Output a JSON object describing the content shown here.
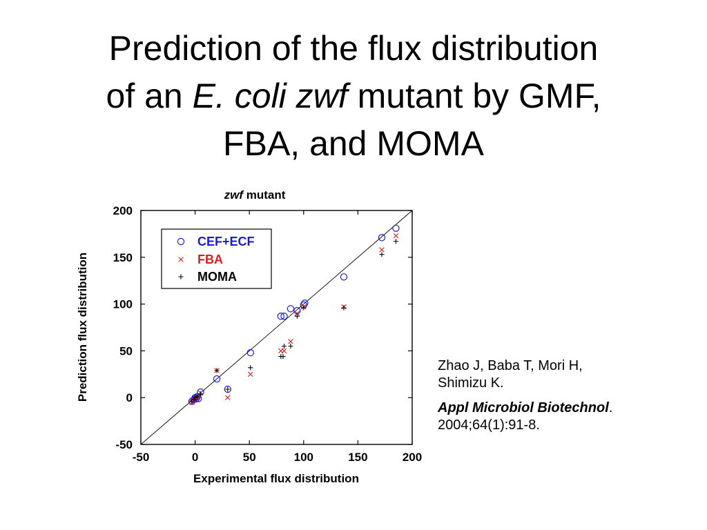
{
  "slide": {
    "title_line1": "Prediction of the flux distribution",
    "title_line2_pre": "of an ",
    "title_line2_italic": "E. coli zwf",
    "title_line2_post": " mutant by GMF,",
    "title_line3": "FBA, and MOMA"
  },
  "reference": {
    "authors_line1": "Zhao J, Baba T, Mori H,",
    "authors_line2": "Shimizu K.",
    "journal": "Appl Microbiol Biotechnol",
    "journal_punct": ".",
    "citation": "2004;64(1):91-8."
  },
  "chart_data": {
    "type": "scatter",
    "title_italic": "zwf",
    "title_rest": " mutant",
    "xlabel": "Experimental flux distribution",
    "ylabel": "Prediction flux distribution",
    "xlim": [
      -50,
      200
    ],
    "ylim": [
      -50,
      200
    ],
    "xticks": [
      -50,
      0,
      50,
      100,
      150,
      200
    ],
    "yticks": [
      -50,
      0,
      50,
      100,
      150,
      200
    ],
    "diagonal": true,
    "legend_position": "top-left",
    "colors": {
      "cef_ecf": "#1c1ccc",
      "fba": "#d42020",
      "moma": "#000000",
      "diagonal": "#000000"
    },
    "series": [
      {
        "name": "CEF+ECF",
        "marker": "circle",
        "points": [
          [
            -3,
            -4
          ],
          [
            -1,
            -2
          ],
          [
            0,
            0
          ],
          [
            1,
            -1
          ],
          [
            2,
            1
          ],
          [
            3,
            -1
          ],
          [
            5,
            6
          ],
          [
            20,
            20
          ],
          [
            30,
            9
          ],
          [
            51,
            48
          ],
          [
            79,
            87
          ],
          [
            82,
            87
          ],
          [
            88,
            95
          ],
          [
            94,
            93
          ],
          [
            100,
            99
          ],
          [
            101,
            101
          ],
          [
            137,
            129
          ],
          [
            172,
            171
          ],
          [
            185,
            181
          ]
        ]
      },
      {
        "name": "FBA",
        "marker": "x",
        "points": [
          [
            -3,
            -5
          ],
          [
            -1,
            -3
          ],
          [
            0,
            0
          ],
          [
            2,
            0
          ],
          [
            5,
            5
          ],
          [
            20,
            29
          ],
          [
            30,
            0
          ],
          [
            51,
            25
          ],
          [
            79,
            50
          ],
          [
            82,
            50
          ],
          [
            88,
            60
          ],
          [
            94,
            90
          ],
          [
            100,
            97
          ],
          [
            137,
            97
          ],
          [
            172,
            158
          ],
          [
            185,
            173
          ]
        ]
      },
      {
        "name": "MOMA",
        "marker": "plus",
        "points": [
          [
            -3,
            -4
          ],
          [
            -1,
            -2
          ],
          [
            0,
            0
          ],
          [
            2,
            1
          ],
          [
            5,
            4
          ],
          [
            20,
            29
          ],
          [
            30,
            9
          ],
          [
            51,
            32
          ],
          [
            79,
            44
          ],
          [
            81,
            44
          ],
          [
            82,
            55
          ],
          [
            88,
            55
          ],
          [
            94,
            87
          ],
          [
            100,
            96
          ],
          [
            137,
            96
          ],
          [
            172,
            153
          ],
          [
            185,
            167
          ]
        ]
      }
    ]
  }
}
